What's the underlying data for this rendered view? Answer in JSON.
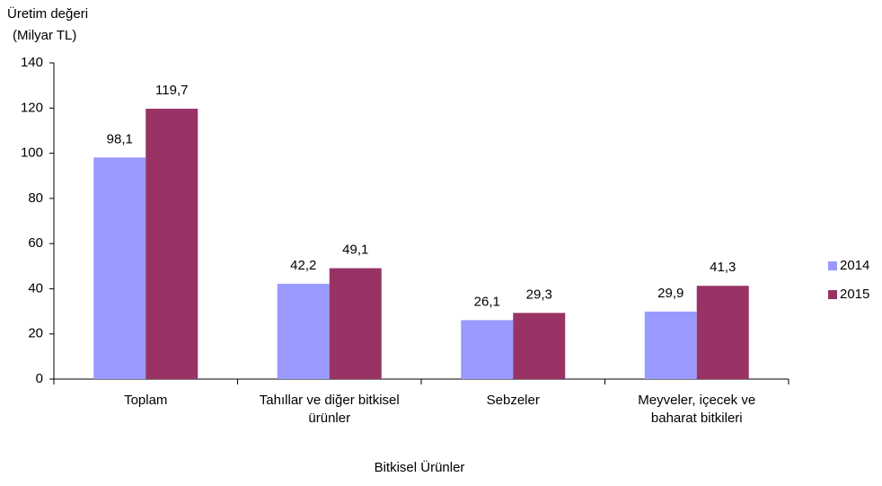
{
  "chart_data": {
    "type": "bar",
    "y_label": [
      "Üretim değeri",
      "(Milyar TL)"
    ],
    "x_label": "Bitkisel Ürünler",
    "categories": [
      "Toplam",
      "Tahıllar ve diğer bitkisel ürünler",
      "Sebzeler",
      "Meyveler, içecek ve baharat bitkileri"
    ],
    "series": [
      {
        "name": "2014",
        "color": "#9999ff",
        "values": [
          98.1,
          42.2,
          26.1,
          29.9
        ],
        "value_labels": [
          "98,1",
          "42,2",
          "26,1",
          "29,9"
        ]
      },
      {
        "name": "2015",
        "color": "#993366",
        "values": [
          119.7,
          49.1,
          29.3,
          41.3
        ],
        "value_labels": [
          "119,7",
          "49,1",
          "29,3",
          "41,3"
        ]
      }
    ],
    "ylim": [
      0,
      140
    ],
    "yticks": [
      0,
      20,
      40,
      60,
      80,
      100,
      120,
      140
    ],
    "grid": false,
    "legend": "right"
  }
}
